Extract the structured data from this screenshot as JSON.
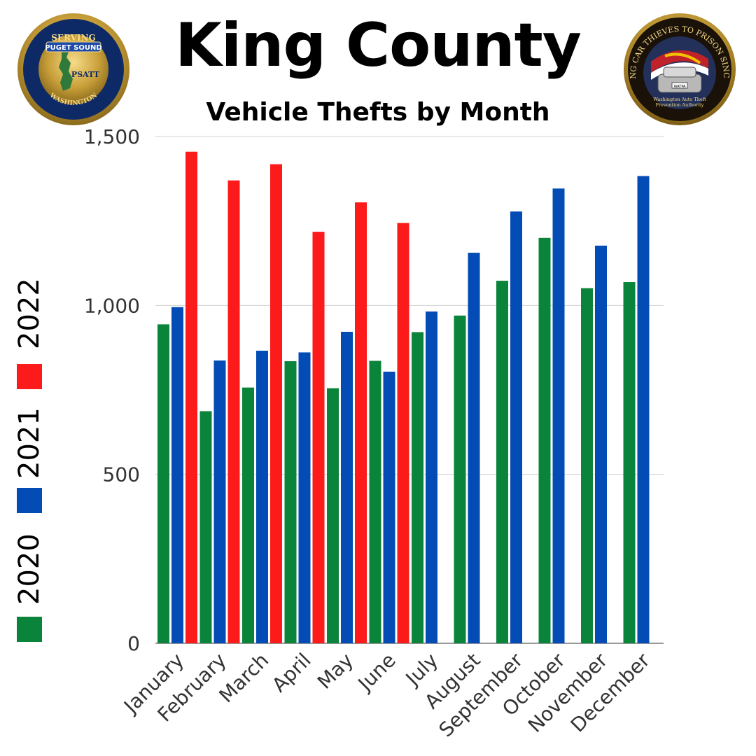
{
  "header": {
    "title": "King County",
    "subtitle": "Vehicle Thefts by Month"
  },
  "logos": {
    "left": {
      "top_text": "SERVING",
      "ring_text_left": "PIERCE COUNTY",
      "ring_text_right": "KING COUNTY",
      "banner": "PUGET SOUND",
      "center": "PSATT",
      "inner_ring": "AUTO THEFT TASK FORCE",
      "bottom": "WASHINGTON"
    },
    "right": {
      "ring_text": "SENDING CAR THIEVES TO PRISON SINCE 2008",
      "plate": "WATPA",
      "caption_line1": "Washington Auto Theft",
      "caption_line2": "Prevention Authority"
    }
  },
  "colors": {
    "2020": "#09843a",
    "2021": "#034cb5",
    "2022": "#fd1a1a",
    "grid": "#d0d0d0",
    "axis": "#333333"
  },
  "chart_data": {
    "type": "bar",
    "title": "Vehicle Thefts by Month",
    "categories": [
      "January",
      "February",
      "March",
      "April",
      "May",
      "June",
      "July",
      "August",
      "September",
      "October",
      "November",
      "December"
    ],
    "series": [
      {
        "name": "2020",
        "values": [
          944,
          687,
          757,
          835,
          755,
          836,
          921,
          970,
          1073,
          1200,
          1051,
          1069
        ]
      },
      {
        "name": "2021",
        "values": [
          995,
          837,
          866,
          861,
          922,
          804,
          982,
          1156,
          1278,
          1346,
          1177,
          1383
        ]
      },
      {
        "name": "2022",
        "values": [
          1455,
          1370,
          1418,
          1218,
          1305,
          1244,
          null,
          null,
          null,
          null,
          null,
          null
        ]
      }
    ],
    "ylim": [
      0,
      1500
    ],
    "yticks": [
      0,
      500,
      1000,
      1500
    ],
    "ytick_labels": [
      "0",
      "500",
      "1,000",
      "1,500"
    ],
    "grid": true,
    "legend_placement": "left",
    "legend": [
      "2022",
      "2021",
      "2020"
    ]
  }
}
